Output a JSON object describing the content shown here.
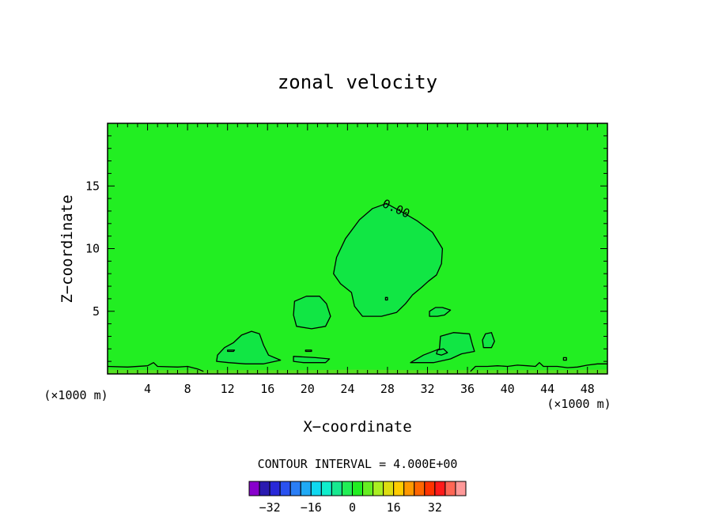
{
  "chart_data": {
    "type": "contour",
    "title": "zonal velocity",
    "xlabel": "X−coordinate",
    "ylabel": "Z−coordinate",
    "x_unit_left": "(×1000 m)",
    "x_unit_right": "(×1000 m)",
    "xlim": [
      0,
      50
    ],
    "ylim": [
      0,
      20
    ],
    "x_ticks": [
      4,
      8,
      12,
      16,
      20,
      24,
      28,
      32,
      36,
      40,
      44,
      48
    ],
    "y_ticks": [
      5,
      10,
      15
    ],
    "background_color": "#22ee22",
    "contour_label": "0.00",
    "contour_interval_text": "CONTOUR INTERVAL = 4.000E+00",
    "colorbar": {
      "colors": [
        "#8800cc",
        "#2a1ab0",
        "#2828d8",
        "#2a52f0",
        "#2a7ef5",
        "#20aaf5",
        "#10d8f0",
        "#10eecc",
        "#18e890",
        "#22ee55",
        "#22ee22",
        "#66ee22",
        "#aaee22",
        "#dddd11",
        "#ffcc00",
        "#ff9900",
        "#ff6600",
        "#ff3300",
        "#ff1a1a",
        "#ff6655",
        "#ff9999"
      ],
      "tick_labels": [
        "−32",
        "−16",
        "0",
        "16",
        "32"
      ],
      "tick_values": [
        -32,
        -16,
        0,
        16,
        32
      ],
      "min": -40,
      "max": 44
    },
    "regions": [
      {
        "color": "#11e644",
        "points": [
          [
            27.9,
            13.6
          ],
          [
            29.5,
            12.9
          ],
          [
            31.0,
            12.2
          ],
          [
            32.5,
            11.3
          ],
          [
            33.5,
            10.0
          ],
          [
            33.4,
            8.8
          ],
          [
            32.9,
            7.9
          ],
          [
            32.1,
            7.4
          ],
          [
            31.4,
            6.9
          ],
          [
            30.5,
            6.3
          ],
          [
            29.8,
            5.6
          ],
          [
            28.9,
            4.9
          ],
          [
            27.4,
            4.6
          ],
          [
            25.5,
            4.6
          ],
          [
            24.7,
            5.4
          ],
          [
            24.4,
            6.5
          ],
          [
            23.3,
            7.2
          ],
          [
            22.6,
            8.0
          ],
          [
            22.9,
            9.3
          ],
          [
            23.8,
            10.8
          ],
          [
            25.2,
            12.3
          ],
          [
            26.5,
            13.2
          ]
        ]
      },
      {
        "color": "#11e644",
        "points": [
          [
            18.7,
            5.8
          ],
          [
            19.9,
            6.2
          ],
          [
            21.2,
            6.2
          ],
          [
            21.9,
            5.6
          ],
          [
            22.3,
            4.6
          ],
          [
            21.8,
            3.8
          ],
          [
            20.4,
            3.6
          ],
          [
            18.9,
            3.8
          ],
          [
            18.6,
            4.7
          ]
        ]
      },
      {
        "color": "#11e644",
        "points": [
          [
            11.0,
            1.5
          ],
          [
            11.7,
            2.1
          ],
          [
            12.6,
            2.5
          ],
          [
            13.4,
            3.1
          ],
          [
            14.4,
            3.4
          ],
          [
            15.2,
            3.2
          ],
          [
            15.6,
            2.3
          ],
          [
            16.1,
            1.5
          ],
          [
            17.3,
            1.1
          ],
          [
            15.6,
            0.8
          ],
          [
            13.8,
            0.8
          ],
          [
            12.1,
            0.9
          ],
          [
            10.9,
            1.0
          ]
        ]
      },
      {
        "color": "#11e644",
        "points": [
          [
            18.6,
            1.4
          ],
          [
            20.8,
            1.3
          ],
          [
            22.2,
            1.2
          ],
          [
            21.8,
            0.9
          ],
          [
            19.6,
            0.9
          ],
          [
            18.6,
            1.0
          ]
        ]
      },
      {
        "color": "#11e644",
        "points": [
          [
            30.3,
            0.9
          ],
          [
            31.6,
            1.5
          ],
          [
            33.2,
            2.0
          ],
          [
            33.3,
            3.0
          ],
          [
            34.6,
            3.3
          ],
          [
            36.2,
            3.2
          ],
          [
            36.5,
            2.3
          ],
          [
            36.7,
            1.8
          ],
          [
            35.4,
            1.6
          ],
          [
            34.3,
            1.2
          ],
          [
            32.6,
            0.9
          ]
        ]
      },
      {
        "color": "#11e644",
        "points": [
          [
            37.8,
            3.2
          ],
          [
            38.4,
            3.3
          ],
          [
            38.7,
            2.6
          ],
          [
            38.4,
            2.1
          ],
          [
            37.6,
            2.1
          ],
          [
            37.5,
            2.7
          ]
        ]
      },
      {
        "color": "#11e644",
        "points": [
          [
            32.2,
            5.0
          ],
          [
            32.8,
            5.3
          ],
          [
            33.5,
            5.3
          ],
          [
            34.3,
            5.1
          ],
          [
            33.7,
            4.7
          ],
          [
            33.0,
            4.6
          ],
          [
            32.2,
            4.6
          ]
        ]
      },
      {
        "color": "#55e022",
        "points": [
          [
            0,
            0
          ],
          [
            50,
            0
          ],
          [
            50,
            0.35
          ],
          [
            45,
            0.3
          ],
          [
            40,
            0.3
          ],
          [
            35,
            0.3
          ],
          [
            30,
            0.3
          ],
          [
            25,
            0.35
          ],
          [
            20,
            0.3
          ],
          [
            15,
            0.3
          ],
          [
            10,
            0.3
          ],
          [
            5,
            0.3
          ],
          [
            0,
            0.35
          ]
        ]
      }
    ],
    "contours": [
      {
        "closed": true,
        "points": [
          [
            27.9,
            13.6
          ],
          [
            29.5,
            12.9
          ],
          [
            31.0,
            12.2
          ],
          [
            32.5,
            11.3
          ],
          [
            33.5,
            10.0
          ],
          [
            33.4,
            8.8
          ],
          [
            32.9,
            7.9
          ],
          [
            32.1,
            7.4
          ],
          [
            31.4,
            6.9
          ],
          [
            30.5,
            6.3
          ],
          [
            29.8,
            5.6
          ],
          [
            28.9,
            4.9
          ],
          [
            27.4,
            4.6
          ],
          [
            25.5,
            4.6
          ],
          [
            24.7,
            5.4
          ],
          [
            24.4,
            6.5
          ],
          [
            23.3,
            7.2
          ],
          [
            22.6,
            8.0
          ],
          [
            22.9,
            9.3
          ],
          [
            23.8,
            10.8
          ],
          [
            25.2,
            12.3
          ],
          [
            26.5,
            13.2
          ]
        ]
      },
      {
        "closed": true,
        "points": [
          [
            18.7,
            5.8
          ],
          [
            19.9,
            6.2
          ],
          [
            21.2,
            6.2
          ],
          [
            21.9,
            5.6
          ],
          [
            22.3,
            4.6
          ],
          [
            21.8,
            3.8
          ],
          [
            20.4,
            3.6
          ],
          [
            18.9,
            3.8
          ],
          [
            18.6,
            4.7
          ]
        ]
      },
      {
        "closed": true,
        "points": [
          [
            11.0,
            1.5
          ],
          [
            11.7,
            2.1
          ],
          [
            12.6,
            2.5
          ],
          [
            13.4,
            3.1
          ],
          [
            14.4,
            3.4
          ],
          [
            15.2,
            3.2
          ],
          [
            15.6,
            2.3
          ],
          [
            16.1,
            1.5
          ],
          [
            17.3,
            1.1
          ],
          [
            15.6,
            0.8
          ],
          [
            13.8,
            0.8
          ],
          [
            12.1,
            0.9
          ],
          [
            10.9,
            1.0
          ]
        ]
      },
      {
        "closed": true,
        "points": [
          [
            18.6,
            1.4
          ],
          [
            20.8,
            1.3
          ],
          [
            22.2,
            1.2
          ],
          [
            21.8,
            0.9
          ],
          [
            19.6,
            0.9
          ],
          [
            18.6,
            1.0
          ]
        ]
      },
      {
        "closed": true,
        "points": [
          [
            30.3,
            0.9
          ],
          [
            31.6,
            1.5
          ],
          [
            33.2,
            2.0
          ],
          [
            33.3,
            3.0
          ],
          [
            34.6,
            3.3
          ],
          [
            36.2,
            3.2
          ],
          [
            36.5,
            2.3
          ],
          [
            36.7,
            1.8
          ],
          [
            35.4,
            1.6
          ],
          [
            34.3,
            1.2
          ],
          [
            32.6,
            0.9
          ]
        ]
      },
      {
        "closed": true,
        "points": [
          [
            37.8,
            3.2
          ],
          [
            38.4,
            3.3
          ],
          [
            38.7,
            2.6
          ],
          [
            38.4,
            2.1
          ],
          [
            37.6,
            2.1
          ],
          [
            37.5,
            2.7
          ]
        ]
      },
      {
        "closed": true,
        "points": [
          [
            32.2,
            5.0
          ],
          [
            32.8,
            5.3
          ],
          [
            33.5,
            5.3
          ],
          [
            34.3,
            5.1
          ],
          [
            33.7,
            4.7
          ],
          [
            33.0,
            4.6
          ],
          [
            32.2,
            4.6
          ]
        ]
      },
      {
        "closed": true,
        "points": [
          [
            33.0,
            1.9
          ],
          [
            33.6,
            2.0
          ],
          [
            34.0,
            1.7
          ],
          [
            33.4,
            1.5
          ],
          [
            32.9,
            1.6
          ]
        ]
      },
      {
        "closed": true,
        "points": [
          [
            12.0,
            1.9
          ],
          [
            12.7,
            1.9
          ],
          [
            12.6,
            1.8
          ],
          [
            12.0,
            1.8
          ]
        ]
      },
      {
        "closed": true,
        "points": [
          [
            19.8,
            1.9
          ],
          [
            20.4,
            1.9
          ],
          [
            20.4,
            1.8
          ],
          [
            19.8,
            1.8
          ]
        ]
      },
      {
        "closed": true,
        "points": [
          [
            27.8,
            6.1
          ],
          [
            28.0,
            6.1
          ],
          [
            28.0,
            5.9
          ],
          [
            27.8,
            5.9
          ]
        ]
      },
      {
        "closed": true,
        "points": [
          [
            45.6,
            1.3
          ],
          [
            45.9,
            1.3
          ],
          [
            45.9,
            1.1
          ],
          [
            45.6,
            1.1
          ]
        ]
      },
      {
        "closed": false,
        "points": [
          [
            0,
            0.6
          ],
          [
            2,
            0.55
          ],
          [
            4,
            0.65
          ],
          [
            4.6,
            0.9
          ],
          [
            5,
            0.6
          ],
          [
            7,
            0.55
          ],
          [
            8,
            0.6
          ],
          [
            9,
            0.4
          ],
          [
            9.6,
            0.2
          ]
        ]
      },
      {
        "closed": false,
        "points": [
          [
            36.3,
            0.2
          ],
          [
            36.8,
            0.6
          ],
          [
            38,
            0.6
          ],
          [
            39,
            0.65
          ],
          [
            40,
            0.6
          ],
          [
            41,
            0.7
          ],
          [
            42,
            0.65
          ],
          [
            42.8,
            0.6
          ],
          [
            43.2,
            0.9
          ],
          [
            43.6,
            0.6
          ],
          [
            45,
            0.6
          ],
          [
            46,
            0.5
          ],
          [
            47,
            0.55
          ],
          [
            48,
            0.7
          ],
          [
            49,
            0.8
          ],
          [
            50,
            0.8
          ]
        ]
      }
    ]
  }
}
